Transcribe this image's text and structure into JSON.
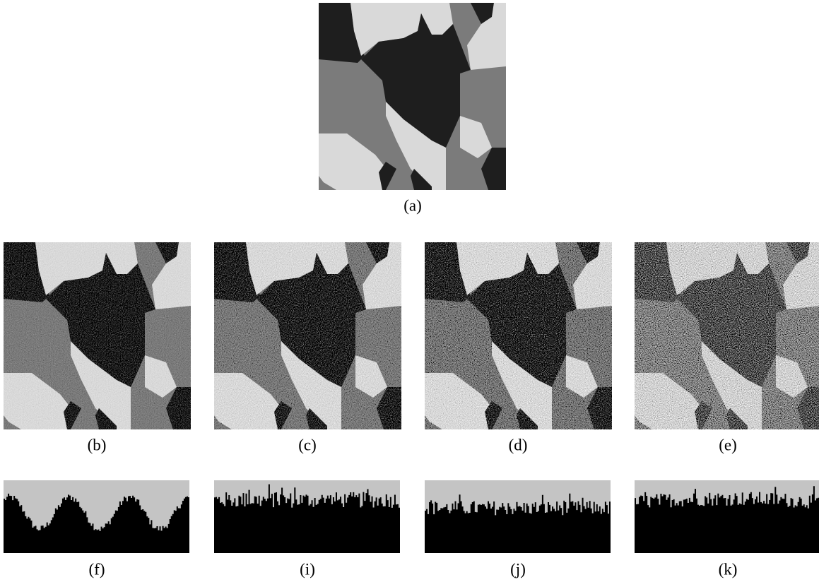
{
  "figure": {
    "panels": [
      "(a)",
      "(b)",
      "(c)",
      "(d)",
      "(e)"
    ],
    "histograms": [
      "(f)",
      "(i)",
      "(j)",
      "(k)"
    ]
  }
}
